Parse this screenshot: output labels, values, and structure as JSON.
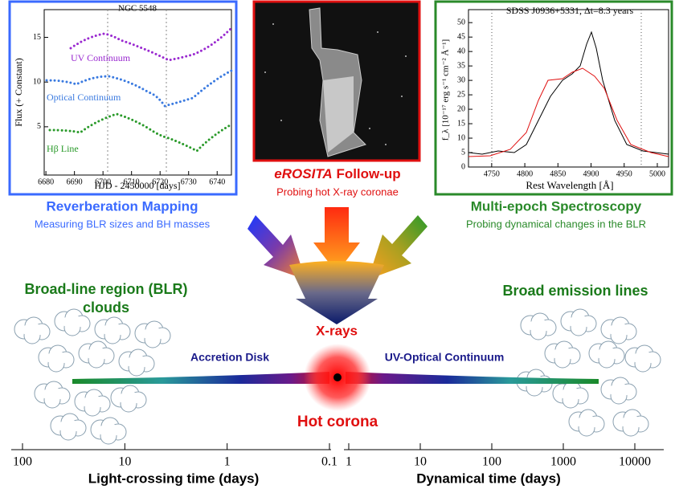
{
  "reverberation_panel": {
    "title": "NGC 5548",
    "y_label": "Flux (+ Constant)",
    "x_label": "HJD - 2450000 [days]",
    "ylim": [
      -0.4,
      18.1
    ],
    "yticks": [
      5,
      10,
      15
    ],
    "xlim": [
      6679.4,
      6745
    ],
    "xticks": [
      6680,
      6690,
      6700,
      6710,
      6720,
      6730,
      6740
    ],
    "series_labels": [
      "UV Continuum",
      "Optical Continuum",
      "Hβ Line"
    ]
  },
  "erosita_panel": {
    "title_italic": "eROSITA",
    "title_rest": " Follow-up",
    "subtitle": "Probing hot X-ray coronae"
  },
  "spectroscopy_panel": {
    "title": "SDSS J0936+5331, Δt=8.3 years",
    "y_label": "f_λ [10⁻¹⁷ erg s⁻¹ cm⁻² Å⁻¹]",
    "x_label": "Rest Wavelength [Å]",
    "ylim": [
      0,
      54.5
    ],
    "yticks": [
      0,
      5,
      10,
      15,
      20,
      25,
      30,
      35,
      40,
      45,
      50
    ],
    "xlim": [
      4715,
      5017
    ],
    "xticks": [
      4750,
      4800,
      4850,
      4900,
      4950,
      5000
    ]
  },
  "headings": {
    "reverberation": "Reverberation Mapping",
    "reverberation_sub": "Measuring BLR sizes and BH masses",
    "spectroscopy": "Multi-epoch Spectroscopy",
    "spectroscopy_sub": "Probing dynamical changes in the BLR"
  },
  "diagram": {
    "blr": "Broad-line region (BLR)",
    "blr2": "clouds",
    "bel": "Broad emission lines",
    "xrays": "X-rays",
    "disk": "Accretion Disk",
    "continuum": "UV-Optical Continuum",
    "corona": "Hot corona"
  },
  "axes": {
    "light_ticks": [
      100,
      10,
      1,
      0.1
    ],
    "light_label": "Light-crossing time (days)",
    "dyn_ticks": [
      1,
      10,
      100,
      1000,
      10000
    ],
    "dyn_label": "Dynamical time (days)"
  }
}
